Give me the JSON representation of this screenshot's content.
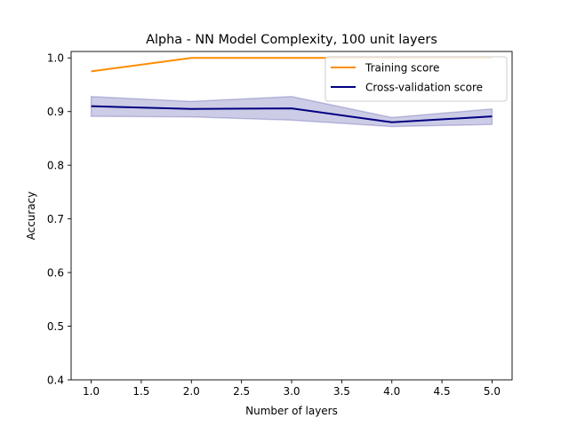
{
  "chart_data": {
    "type": "line",
    "title": "Alpha - NN Model Complexity, 100 unit layers",
    "xlabel": "Number of layers",
    "ylabel": "Accuracy",
    "x": [
      1.0,
      2.0,
      3.0,
      4.0,
      5.0
    ],
    "xlim": [
      0.8,
      5.2
    ],
    "ylim": [
      0.4,
      1.012
    ],
    "xticks": [
      1.0,
      1.5,
      2.0,
      2.5,
      3.0,
      3.5,
      4.0,
      4.5,
      5.0
    ],
    "xtick_labels": [
      "1.0",
      "1.5",
      "2.0",
      "2.5",
      "3.0",
      "3.5",
      "4.0",
      "4.5",
      "5.0"
    ],
    "yticks": [
      0.4,
      0.5,
      0.6,
      0.7,
      0.8,
      0.9,
      1.0
    ],
    "ytick_labels": [
      "0.4",
      "0.5",
      "0.6",
      "0.7",
      "0.8",
      "0.9",
      "1.0"
    ],
    "grid": false,
    "legend_position": "upper right",
    "series": [
      {
        "name": "Training score",
        "color": "#ff8c00",
        "values": [
          0.975,
          1.0,
          1.0,
          1.0,
          1.0
        ],
        "band": null
      },
      {
        "name": "Cross-validation score",
        "color": "#000080",
        "values": [
          0.91,
          0.905,
          0.906,
          0.88,
          0.891
        ],
        "band": {
          "lower": [
            0.891,
            0.89,
            0.884,
            0.872,
            0.876
          ],
          "upper": [
            0.928,
            0.919,
            0.928,
            0.889,
            0.905
          ],
          "color": "#000080",
          "opacity": 0.2
        }
      }
    ]
  }
}
